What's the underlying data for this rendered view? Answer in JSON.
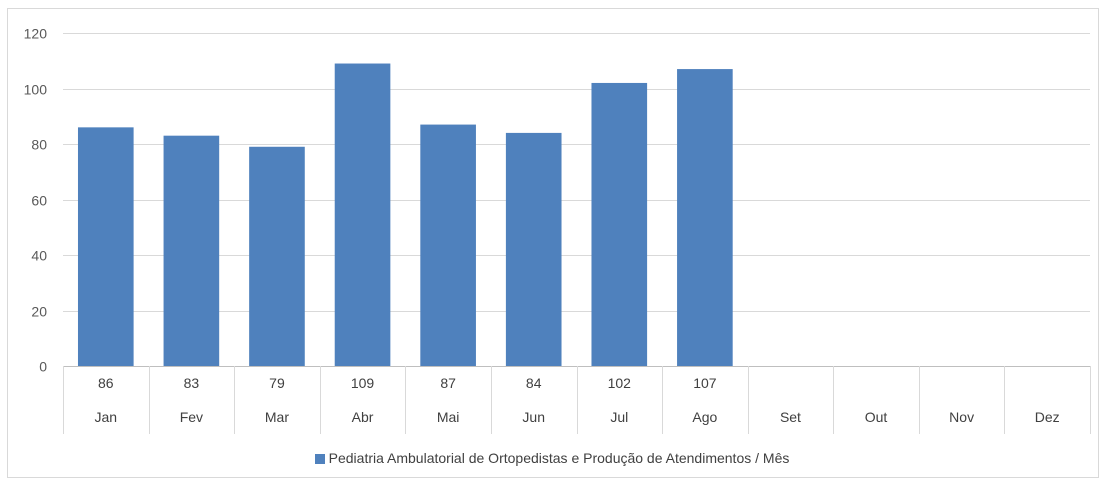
{
  "chart_data": {
    "type": "bar",
    "categories": [
      "Jan",
      "Fev",
      "Mar",
      "Abr",
      "Mai",
      "Jun",
      "Jul",
      "Ago",
      "Set",
      "Out",
      "Nov",
      "Dez"
    ],
    "series": [
      {
        "name": "Pediatria Ambulatorial de Ortopedistas e Produção de Atendimentos / Mês",
        "values": [
          86,
          83,
          79,
          109,
          87,
          84,
          102,
          107,
          null,
          null,
          null,
          null
        ],
        "labels": [
          "86",
          "83",
          "79",
          "109",
          "87",
          "84",
          "102",
          "107",
          "",
          "",
          "",
          ""
        ],
        "color": "#4f81bd"
      }
    ],
    "ylim": [
      0,
      120
    ],
    "yticks": [
      0,
      20,
      40,
      60,
      80,
      100,
      120
    ],
    "grid": true,
    "legend_position": "bottom",
    "data_table": true
  }
}
